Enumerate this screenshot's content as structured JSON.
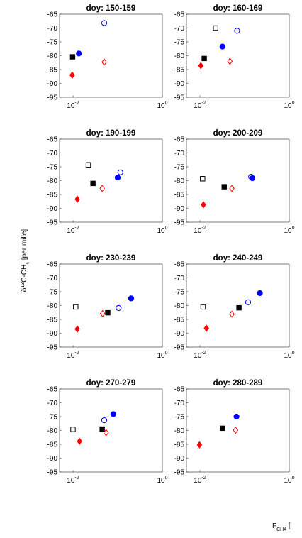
{
  "chart_data": {
    "type": "scatter",
    "ylabel": "δ13C-CH4 [per mille]",
    "xlabel": "FCH4 [",
    "x_scale": "log",
    "xlim": [
      0.005,
      1.0
    ],
    "ylim": [
      -95,
      -65
    ],
    "yticks": [
      -65,
      -70,
      -75,
      -80,
      -85,
      -90,
      -95
    ],
    "xticks": [
      0.01,
      1.0
    ],
    "xtick_labels": [
      [
        "10",
        "-2"
      ],
      [
        "10",
        "0"
      ]
    ],
    "colors": {
      "blue": "#0000ff",
      "red": "#ff0000",
      "black": "#000000"
    },
    "series_styles": [
      {
        "color": "#ff0000",
        "marker": "diamond",
        "filled": true
      },
      {
        "color": "#ff0000",
        "marker": "diamond",
        "filled": false
      },
      {
        "color": "#000000",
        "marker": "square",
        "filled": true
      },
      {
        "color": "#000000",
        "marker": "square",
        "filled": false
      },
      {
        "color": "#0000ff",
        "marker": "circle",
        "filled": true
      },
      {
        "color": "#0000ff",
        "marker": "circle",
        "filled": false
      }
    ],
    "panels": [
      {
        "title": "doy: 150-159",
        "points": [
          [
            0.0096,
            -87
          ],
          [
            0.05,
            -82.3
          ],
          [
            0.0098,
            -80.4
          ],
          null,
          [
            0.0135,
            -79.2
          ],
          [
            0.05,
            -68.2
          ]
        ]
      },
      {
        "title": "doy: 160-169",
        "points": [
          [
            0.0105,
            -83.6
          ],
          [
            0.047,
            -82
          ],
          [
            0.0125,
            -81
          ],
          [
            0.0225,
            -70
          ],
          [
            0.032,
            -76.7
          ],
          [
            0.068,
            -71
          ]
        ]
      },
      {
        "title": "doy: 190-199",
        "points": [
          [
            0.0125,
            -86.7
          ],
          [
            0.045,
            -82.8
          ],
          [
            0.028,
            -81
          ],
          [
            0.022,
            -74.3
          ],
          [
            0.1,
            -78.9
          ],
          [
            0.115,
            -77
          ]
        ]
      },
      {
        "title": "doy: 200-209",
        "points": [
          [
            0.012,
            -88.7
          ],
          [
            0.052,
            -82.8
          ],
          [
            0.035,
            -82.2
          ],
          [
            0.0115,
            -79.3
          ],
          [
            0.15,
            -79.1
          ],
          [
            0.14,
            -78.6
          ]
        ]
      },
      {
        "title": "doy: 230-239",
        "points": [
          [
            0.0125,
            -88.5
          ],
          [
            0.046,
            -82.9
          ],
          [
            0.06,
            -82.6
          ],
          [
            0.0115,
            -80.5
          ],
          [
            0.2,
            -77.4
          ],
          [
            0.105,
            -80.9
          ]
        ]
      },
      {
        "title": "doy: 240-249",
        "points": [
          [
            0.014,
            -88.2
          ],
          [
            0.052,
            -83.1
          ],
          [
            0.075,
            -80.8
          ],
          [
            0.0118,
            -80.5
          ],
          [
            0.22,
            -75.5
          ],
          [
            0.12,
            -78.8
          ]
        ]
      },
      {
        "title": "doy: 270-279",
        "points": [
          [
            0.014,
            -83.9
          ],
          [
            0.055,
            -80.8
          ],
          [
            0.045,
            -79.5
          ],
          [
            0.01,
            -79.6
          ],
          [
            0.08,
            -74.1
          ],
          [
            0.05,
            -76.3
          ]
        ]
      },
      {
        "title": "doy: 280-289",
        "points": [
          [
            0.0098,
            -85.2
          ],
          [
            0.063,
            -79.9
          ],
          [
            0.032,
            -79.2
          ],
          null,
          [
            0.066,
            -75
          ],
          null
        ]
      }
    ]
  }
}
